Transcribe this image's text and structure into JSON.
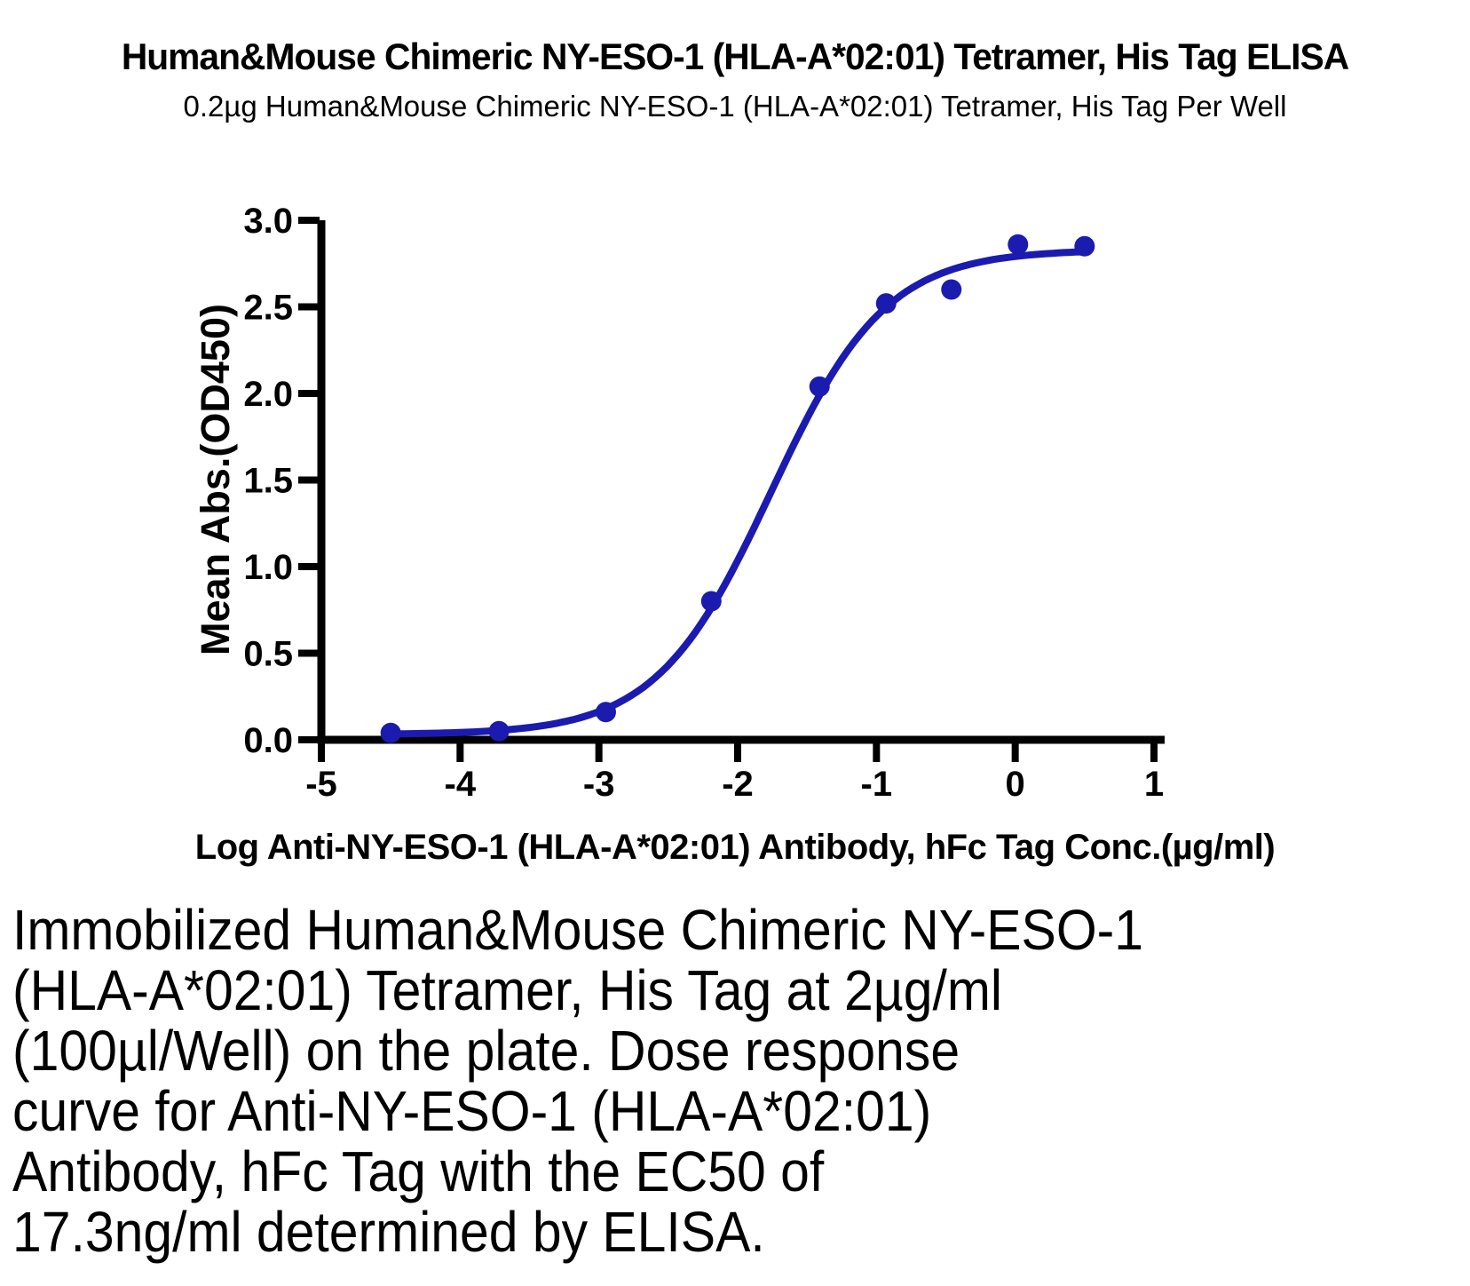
{
  "header": {
    "title": "Human&Mouse Chimeric NY-ESO-1 (HLA-A*02:01) Tetramer, His Tag ELISA",
    "subtitle": "0.2µg Human&Mouse Chimeric NY-ESO-1 (HLA-A*02:01) Tetramer, His Tag Per Well"
  },
  "chart_data": {
    "type": "scatter",
    "title": "Human&Mouse Chimeric NY-ESO-1 (HLA-A*02:01) Tetramer, His Tag ELISA",
    "subtitle": "0.2µg Human&Mouse Chimeric NY-ESO-1 (HLA-A*02:01) Tetramer, His Tag Per Well",
    "xlabel": "Log Anti-NY-ESO-1 (HLA-A*02:01) Antibody, hFc Tag Conc.(µg/ml)",
    "ylabel": "Mean Abs.(OD450)",
    "xlim": [
      -5,
      1
    ],
    "ylim": [
      0,
      3
    ],
    "x_ticks": [
      -5,
      -4,
      -3,
      -2,
      -1,
      0,
      1
    ],
    "y_ticks": [
      0,
      0.5,
      1,
      1.5,
      2,
      2.5,
      3
    ],
    "grid": false,
    "legend_position": "none",
    "marker_color": "#1b1bb0",
    "line_color": "#1b1bb0",
    "series": [
      {
        "name": "Anti-NY-ESO-1 (HLA-A*02:01) Antibody, hFc Tag",
        "points": [
          {
            "x": -4.5,
            "y": 0.04
          },
          {
            "x": -3.72,
            "y": 0.05
          },
          {
            "x": -2.95,
            "y": 0.16
          },
          {
            "x": -2.19,
            "y": 0.8
          },
          {
            "x": -1.41,
            "y": 2.04
          },
          {
            "x": -0.93,
            "y": 2.52
          },
          {
            "x": -0.46,
            "y": 2.6
          },
          {
            "x": 0.02,
            "y": 2.86
          },
          {
            "x": 0.5,
            "y": 2.85
          }
        ]
      }
    ],
    "fit_curve": {
      "model": "4PL",
      "bottom": 0.03,
      "top": 2.83,
      "log_ec50": -1.76,
      "hill_slope": 1.05,
      "x_range": [
        -4.53,
        0.52
      ]
    },
    "ec50_label": "17.3ng/ml"
  },
  "footer": {
    "text": "Immobilized Human&Mouse Chimeric NY-ESO-1\n(HLA-A*02:01) Tetramer, His Tag at 2µg/ml\n(100µl/Well) on the plate. Dose response\ncurve for Anti-NY-ESO-1 (HLA-A*02:01)\nAntibody, hFc Tag with the EC50 of\n17.3ng/ml determined by ELISA."
  }
}
